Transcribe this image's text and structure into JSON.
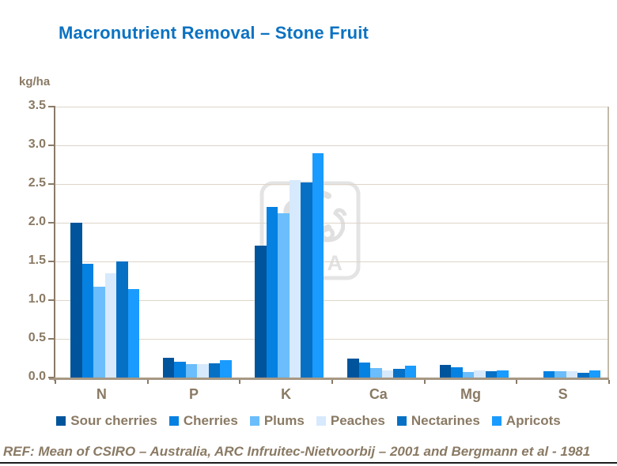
{
  "footer": {
    "text": "REF: Mean of CSIRO – Australia, ARC Infruitec-Nietvoorbij – 2001 and Bergmann et al - 1981"
  },
  "watermark": {
    "text": "YARA"
  },
  "colors": {
    "title_blue": "#0b72c2",
    "axis_text": "#8a7a64",
    "axis_line": "#8a7a68",
    "baseline": "#a79884",
    "gridline": "#ddd5c9",
    "plot_right_border": "#c3baab",
    "watermark_gray": "#e2e2e2",
    "footer_rule": "#1c1c1c"
  },
  "chart_data": {
    "type": "bar",
    "title": "Macronutrient Removal – Stone Fruit",
    "ylabel": "kg/ha",
    "xlabel": "",
    "ylim": [
      0,
      3.5
    ],
    "ytick_step": 0.5,
    "ytick_labels": [
      "0.0",
      "0.5",
      "1.0",
      "1.5",
      "2.0",
      "2.5",
      "3.0",
      "3.5"
    ],
    "grid": true,
    "legend_position": "bottom",
    "categories": [
      "N",
      "P",
      "K",
      "Ca",
      "Mg",
      "S"
    ],
    "series": [
      {
        "name": "Sour cherries",
        "color": "#00549b",
        "values": [
          2.0,
          0.26,
          1.7,
          0.25,
          0.16,
          0.0
        ]
      },
      {
        "name": "Cherries",
        "color": "#0581e2",
        "values": [
          1.47,
          0.2,
          2.2,
          0.19,
          0.13,
          0.08
        ]
      },
      {
        "name": "Plums",
        "color": "#6bbdfb",
        "values": [
          1.17,
          0.17,
          2.12,
          0.12,
          0.07,
          0.08
        ]
      },
      {
        "name": "Peaches",
        "color": "#d7e9fc",
        "values": [
          1.35,
          0.17,
          2.55,
          0.09,
          0.09,
          0.08
        ]
      },
      {
        "name": "Nectarines",
        "color": "#0570c4",
        "values": [
          1.5,
          0.18,
          2.52,
          0.11,
          0.08,
          0.06
        ]
      },
      {
        "name": "Apricots",
        "color": "#1a9bff",
        "values": [
          1.14,
          0.22,
          2.9,
          0.15,
          0.09,
          0.09
        ]
      }
    ]
  }
}
